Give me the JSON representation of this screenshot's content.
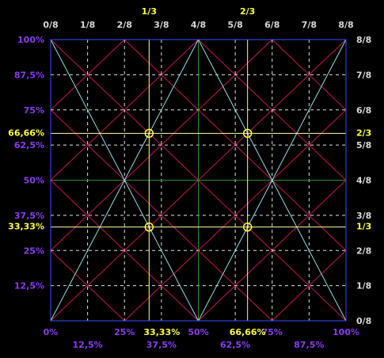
{
  "top_labels": [
    "0/8",
    "1/8",
    "2/8",
    "3/8",
    "4/8",
    "5/8",
    "6/8",
    "7/8",
    "8/8"
  ],
  "top_third_labels": [
    "1/3",
    "2/3"
  ],
  "left_labels": [
    "100%",
    "87,5%",
    "75%",
    "62,5%",
    "50%",
    "37,5%",
    "25%",
    "12,5%"
  ],
  "left_third_labels": [
    "66,66%",
    "33,33%"
  ],
  "right_labels": [
    "8/8",
    "7/8",
    "6/8",
    "5/8",
    "4/8",
    "3/8",
    "2/8",
    "1/8",
    "0/8"
  ],
  "right_third_labels": [
    "2/3",
    "1/3"
  ],
  "bottom_labels": [
    "0%",
    "25%",
    "50%",
    "75%",
    "100%"
  ],
  "bottom_third_labels": [
    "33,33%",
    "66,66%"
  ],
  "bottom_second_row_labels": [
    "12,5%",
    "37,5%",
    "62,5%",
    "87,5%"
  ]
}
